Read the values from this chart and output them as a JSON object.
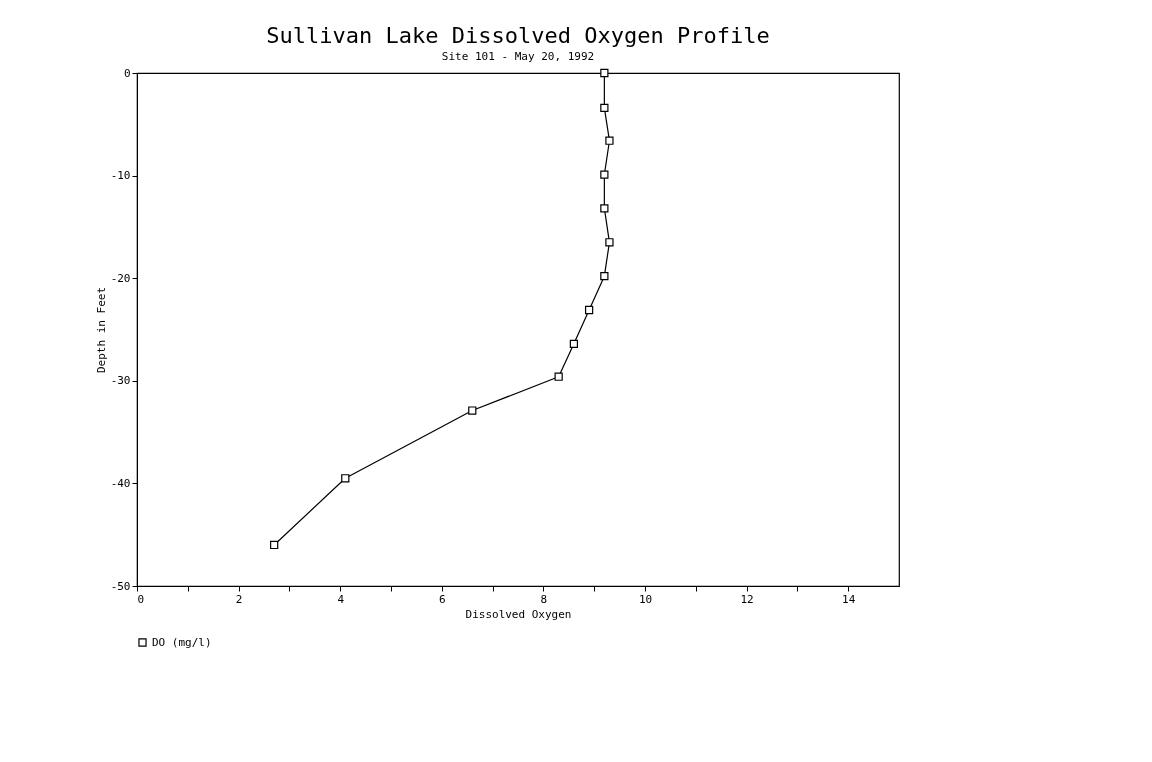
{
  "chart_data": {
    "type": "line",
    "title": "Sullivan Lake Dissolved Oxygen Profile",
    "subtitle": "Site 101 - May 20, 1992",
    "xlabel": "Dissolved Oxygen",
    "ylabel": "Depth in Feet",
    "series": [
      {
        "name": "DO (mg/l)",
        "color": "#000000",
        "x": [
          9.2,
          9.2,
          9.3,
          9.2,
          9.2,
          9.3,
          9.2,
          8.9,
          8.6,
          8.3,
          6.6,
          4.1,
          2.7
        ],
        "values": [
          0,
          -3.4,
          -6.6,
          -9.9,
          -13.2,
          -16.5,
          -19.8,
          -23.1,
          -26.4,
          -29.6,
          -32.9,
          -39.5,
          -46
        ]
      }
    ],
    "xlim": [
      0,
      15
    ],
    "xticks": [
      0,
      {
        "value": 1,
        "label": null
      },
      2,
      {
        "value": 3,
        "label": null
      },
      4,
      {
        "value": 5,
        "label": null
      },
      6,
      {
        "value": 7,
        "label": null
      },
      8,
      {
        "value": 9,
        "label": null
      },
      10,
      {
        "value": 11,
        "label": null
      },
      12,
      {
        "value": 13,
        "label": null
      },
      14
    ],
    "ylim": [
      -50,
      0
    ],
    "yticks": [
      -50,
      -40,
      -30,
      -20,
      -10,
      0
    ],
    "marker": "square",
    "line_style": "solid",
    "grid": false,
    "legend": "bottom"
  }
}
